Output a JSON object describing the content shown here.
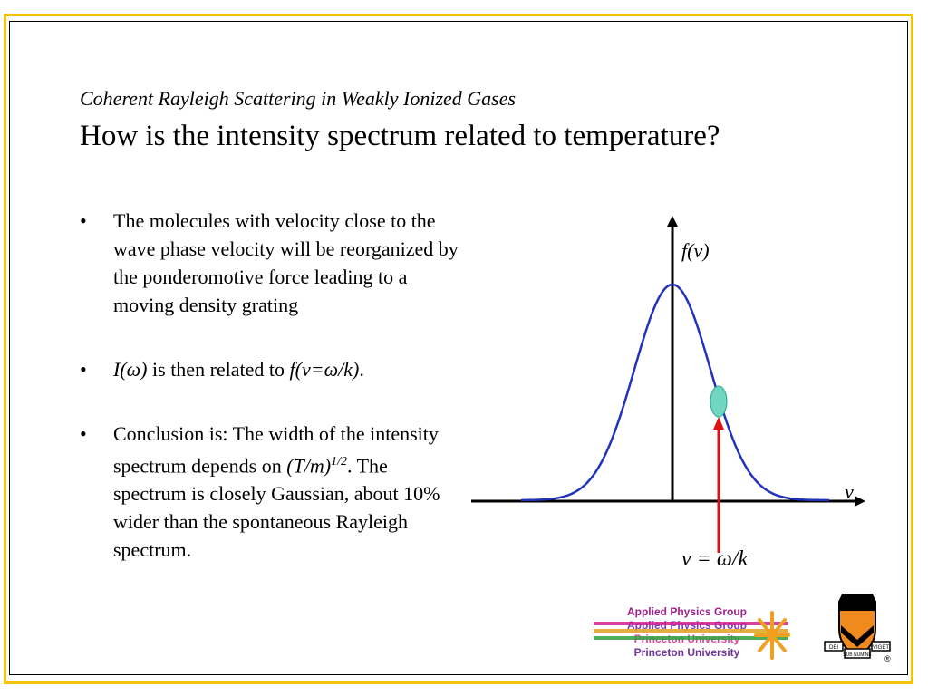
{
  "slide": {
    "subtitle": "Coherent Rayleigh Scattering in Weakly Ionized Gases",
    "title": "How is the intensity spectrum related to temperature?"
  },
  "bullets": {
    "marker": "•",
    "b1": "The molecules with velocity close to the wave phase velocity will be reorganized by the ponderomotive force leading to a moving density grating",
    "b2_i": "I(ω)",
    "b2_mid": " is then related to ",
    "b2_f": "f(v=ω/k)",
    "b2_end": ".",
    "b3_a": "Conclusion is: The width of the intensity spectrum depends on ",
    "b3_tm": "(T/m)",
    "b3_sup": "1/2",
    "b3_b": ". The spectrum is closely Gaussian, about 10% wider than the spontaneous Rayleigh spectrum."
  },
  "figure": {
    "ylabel": "f(v)",
    "xlabel": "v",
    "marker_label": "v = ω/k",
    "curve_color": "#2233bb",
    "arrow_color": "#dd1111",
    "ellipse_color": "#6fd6c0"
  },
  "logo": {
    "line1": "Applied Physics Group",
    "line2": "Applied Physics Group",
    "line3": "Princeton University",
    "line4": "Princeton University",
    "shield_text_left": "DEI",
    "shield_text_mid": "SUB NUMINE",
    "shield_text_right": "VIGET",
    "registered": "®"
  }
}
